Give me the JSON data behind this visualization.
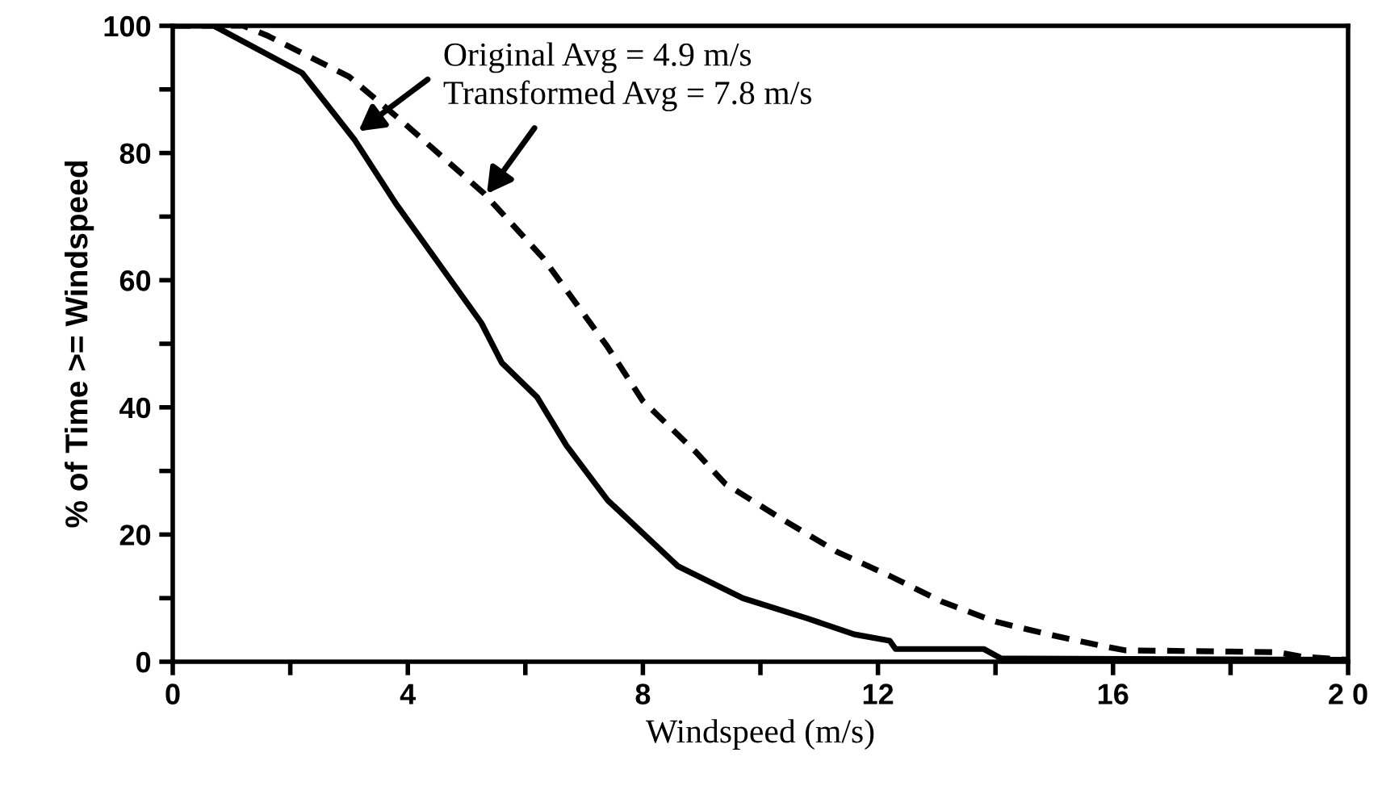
{
  "chart_data": {
    "type": "line",
    "xlabel": "Windspeed (m/s)",
    "ylabel": "% of Time >= Windspeed",
    "series": [
      {
        "color": "#000000",
        "line_style": "solid",
        "x": [
          0,
          0.7,
          2.2,
          3.1,
          3.8,
          5.25,
          5.6,
          6.2,
          6.7,
          7.4,
          8.6,
          9.7,
          10.8,
          11.6,
          12.2,
          12.3,
          13.8,
          14.1,
          20
        ],
        "values": [
          100,
          100,
          92.6,
          82,
          72,
          53.3,
          47,
          41.6,
          34,
          25.4,
          15,
          10,
          6.8,
          4.3,
          3.3,
          2,
          2,
          0.5,
          0.3
        ]
      },
      {
        "color": "#000000",
        "line_style": "dashed",
        "x": [
          0,
          1.2,
          1.6,
          3.0,
          3.9,
          5.3,
          6.3,
          7.4,
          8.0,
          8.9,
          9.4,
          10.3,
          11.3,
          12.2,
          13.1,
          14.0,
          14.9,
          15.8,
          16.2,
          18.8,
          19.2,
          20
        ],
        "values": [
          100,
          100,
          98.5,
          92,
          85,
          73.6,
          63.5,
          49.5,
          41,
          33,
          28,
          22.8,
          17.3,
          13.5,
          9.4,
          6.3,
          4.3,
          2.5,
          1.8,
          1.5,
          0.8,
          0.3
        ]
      }
    ],
    "annotations": [
      {
        "text": "Original Avg = 4.9 m/s",
        "x": 3.1,
        "y": 83
      },
      {
        "text": "Transformed Avg = 7.8 m/s",
        "x": 5.3,
        "y": 73
      }
    ],
    "xlim": [
      0,
      20
    ],
    "ylim": [
      0,
      100
    ],
    "xticks": [
      0,
      {
        "value": 2,
        "label": null
      },
      4,
      {
        "value": 6,
        "label": null
      },
      8,
      {
        "value": 10,
        "label": null
      },
      12,
      {
        "value": 14,
        "label": null
      },
      16,
      {
        "value": 18,
        "label": null
      },
      {
        "value": 20,
        "label": "2 0"
      }
    ],
    "yticks": [
      0,
      {
        "value": 10,
        "label": null
      },
      20,
      {
        "value": 30,
        "label": null
      },
      40,
      {
        "value": 50,
        "label": null
      },
      60,
      {
        "value": 70,
        "label": null
      },
      80,
      {
        "value": 90,
        "label": null
      },
      100
    ],
    "grid": false,
    "legend": false,
    "marker": "none"
  }
}
